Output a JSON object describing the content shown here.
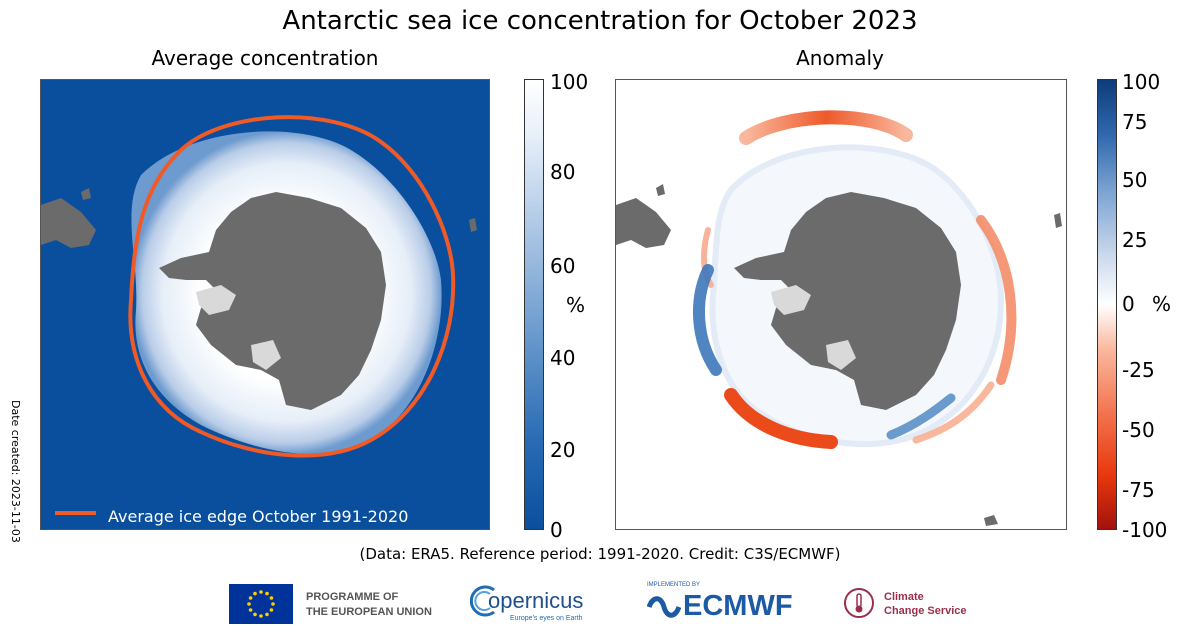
{
  "title": "Antarctic sea ice concentration for October 2023",
  "left_panel": {
    "title": "Average concentration",
    "colorbar": {
      "ticks": [
        "100",
        "80",
        "60",
        "40",
        "20",
        "0"
      ],
      "unit": "%"
    },
    "legend": "Average ice edge October 1991-2020"
  },
  "right_panel": {
    "title": "Anomaly",
    "colorbar": {
      "ticks": [
        "100",
        "75",
        "50",
        "25",
        "0",
        "-25",
        "-50",
        "-75",
        "-100"
      ],
      "unit": "%"
    }
  },
  "date_created": "Date created: 2023-11-03",
  "credits": "(Data: ERA5.  Reference period: 1991-2020.  Credit: C3S/ECMWF)",
  "logos": {
    "eu": {
      "line1": "PROGRAMME OF",
      "line2": "THE EUROPEAN UNION"
    },
    "copernicus": {
      "name": "opernicus",
      "tagline": "Europe's eyes on Earth"
    },
    "ecmwf": {
      "implemented": "IMPLEMENTED BY",
      "name": "ECMWF"
    },
    "c3s": {
      "line1": "Climate",
      "line2": "Change Service"
    }
  },
  "colors": {
    "ocean": "#0a4f9e",
    "land": "#6b6b6b",
    "ice_edge": "#ef5a26",
    "positive_anomaly": "#2f67ad",
    "negative_anomaly": "#e8380d"
  }
}
